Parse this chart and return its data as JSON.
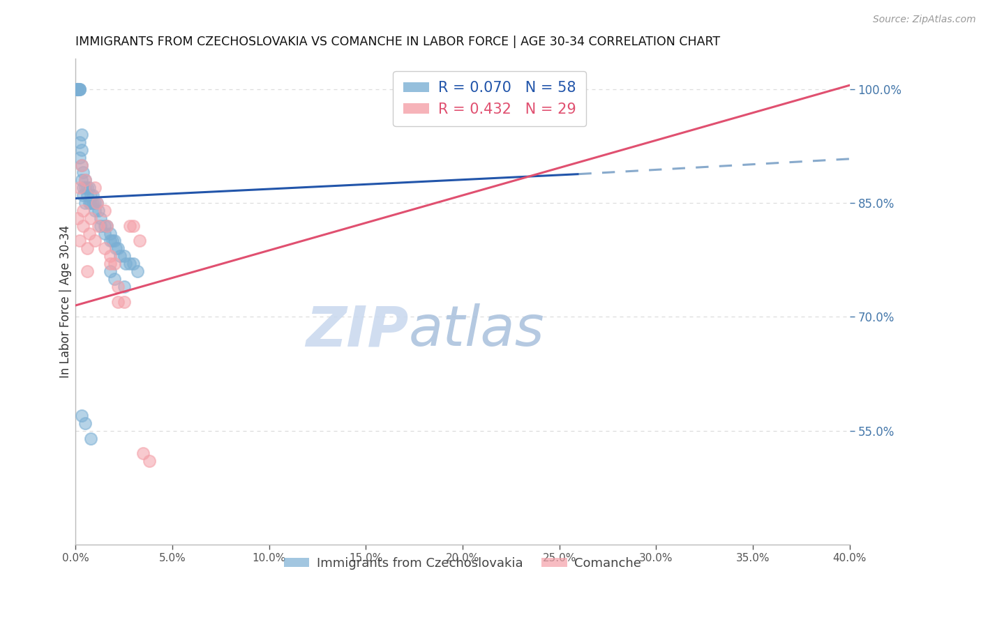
{
  "title": "IMMIGRANTS FROM CZECHOSLOVAKIA VS COMANCHE IN LABOR FORCE | AGE 30-34 CORRELATION CHART",
  "source": "Source: ZipAtlas.com",
  "ylabel": "In Labor Force | Age 30-34",
  "xlim": [
    0.0,
    0.4
  ],
  "ylim": [
    0.4,
    1.04
  ],
  "yticks": [
    0.55,
    0.7,
    0.85,
    1.0
  ],
  "xticks": [
    0.0,
    0.05,
    0.1,
    0.15,
    0.2,
    0.25,
    0.3,
    0.35,
    0.4
  ],
  "blue_color": "#7BAFD4",
  "pink_color": "#F4A0A8",
  "blue_line_color": "#2255AA",
  "pink_line_color": "#E05070",
  "blue_R": 0.07,
  "blue_N": 58,
  "pink_R": 0.432,
  "pink_N": 29,
  "legend_label_blue": "Immigrants from Czechoslovakia",
  "legend_label_pink": "Comanche",
  "blue_scatter_x": [
    0.001,
    0.001,
    0.001,
    0.001,
    0.001,
    0.001,
    0.001,
    0.001,
    0.002,
    0.002,
    0.002,
    0.002,
    0.002,
    0.003,
    0.003,
    0.003,
    0.003,
    0.004,
    0.004,
    0.004,
    0.005,
    0.005,
    0.005,
    0.006,
    0.006,
    0.007,
    0.007,
    0.008,
    0.008,
    0.009,
    0.009,
    0.01,
    0.01,
    0.011,
    0.012,
    0.013,
    0.013,
    0.015,
    0.015,
    0.016,
    0.018,
    0.018,
    0.019,
    0.02,
    0.021,
    0.022,
    0.023,
    0.025,
    0.026,
    0.028,
    0.03,
    0.032,
    0.003,
    0.005,
    0.018,
    0.02,
    0.025,
    0.008
  ],
  "blue_scatter_y": [
    1.0,
    1.0,
    1.0,
    1.0,
    1.0,
    1.0,
    1.0,
    1.0,
    1.0,
    1.0,
    1.0,
    0.93,
    0.91,
    0.94,
    0.92,
    0.9,
    0.88,
    0.89,
    0.87,
    0.86,
    0.88,
    0.87,
    0.85,
    0.87,
    0.86,
    0.87,
    0.85,
    0.86,
    0.85,
    0.86,
    0.85,
    0.85,
    0.84,
    0.85,
    0.84,
    0.83,
    0.82,
    0.82,
    0.81,
    0.82,
    0.81,
    0.8,
    0.8,
    0.8,
    0.79,
    0.79,
    0.78,
    0.78,
    0.77,
    0.77,
    0.77,
    0.76,
    0.57,
    0.56,
    0.76,
    0.75,
    0.74,
    0.54
  ],
  "pink_scatter_x": [
    0.001,
    0.002,
    0.003,
    0.004,
    0.005,
    0.006,
    0.007,
    0.008,
    0.01,
    0.011,
    0.012,
    0.015,
    0.016,
    0.018,
    0.02,
    0.022,
    0.025,
    0.028,
    0.03,
    0.033,
    0.035,
    0.038,
    0.002,
    0.004,
    0.006,
    0.01,
    0.015,
    0.018,
    0.022
  ],
  "pink_scatter_y": [
    0.83,
    0.87,
    0.9,
    0.84,
    0.88,
    0.79,
    0.81,
    0.83,
    0.87,
    0.85,
    0.82,
    0.84,
    0.82,
    0.78,
    0.77,
    0.74,
    0.72,
    0.82,
    0.82,
    0.8,
    0.52,
    0.51,
    0.8,
    0.82,
    0.76,
    0.8,
    0.79,
    0.77,
    0.72
  ],
  "watermark_zip": "ZIP",
  "watermark_atlas": "atlas",
  "background_color": "#FFFFFF",
  "right_axis_color": "#4477AA",
  "grid_color": "#DDDDDD"
}
